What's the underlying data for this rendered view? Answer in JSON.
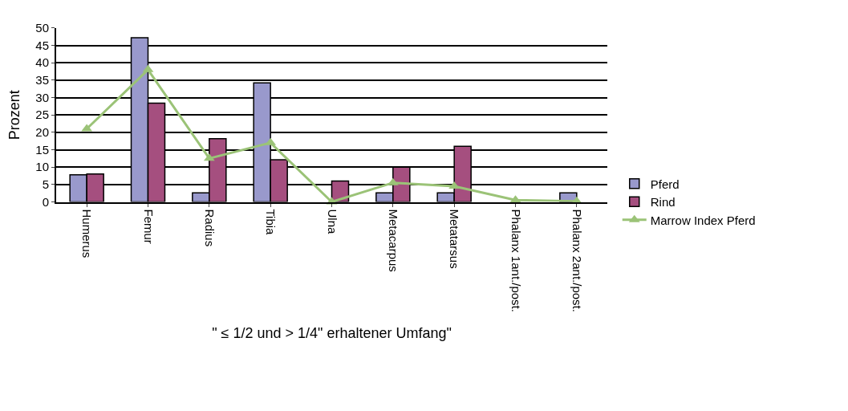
{
  "chart_data": {
    "type": "bar",
    "xlabel": "\" ≤ 1/2 und > 1/4\" erhaltener Umfang\"",
    "ylabel": "Prozent",
    "categories": [
      "Humerus",
      "Femur",
      "Radius",
      "Tibia",
      "Ulna",
      "Metacarpus",
      "Metatarsus",
      "Phalanx 1ant./post.",
      "Phalanx 2ant./post."
    ],
    "series": [
      {
        "name": "Pferd",
        "color": "#9999cc",
        "values": [
          7.8,
          47.2,
          2.6,
          34.2,
          0,
          2.6,
          2.6,
          0,
          2.6
        ]
      },
      {
        "name": "Rind",
        "color": "#a54f7f",
        "values": [
          8,
          28.4,
          18.2,
          12.1,
          6,
          10,
          16,
          0,
          0
        ]
      },
      {
        "name": "Marrow Index Pferd",
        "type": "line",
        "color": "#9bc377",
        "marker": "triangle",
        "values": [
          21,
          38,
          12.5,
          17,
          0,
          5.5,
          4.5,
          0.5,
          0.2
        ]
      }
    ],
    "ylim": [
      0,
      50
    ],
    "yticks": [
      0,
      5,
      10,
      15,
      20,
      25,
      30,
      35,
      40,
      45,
      50
    ],
    "grid": "y",
    "legend": "right"
  }
}
